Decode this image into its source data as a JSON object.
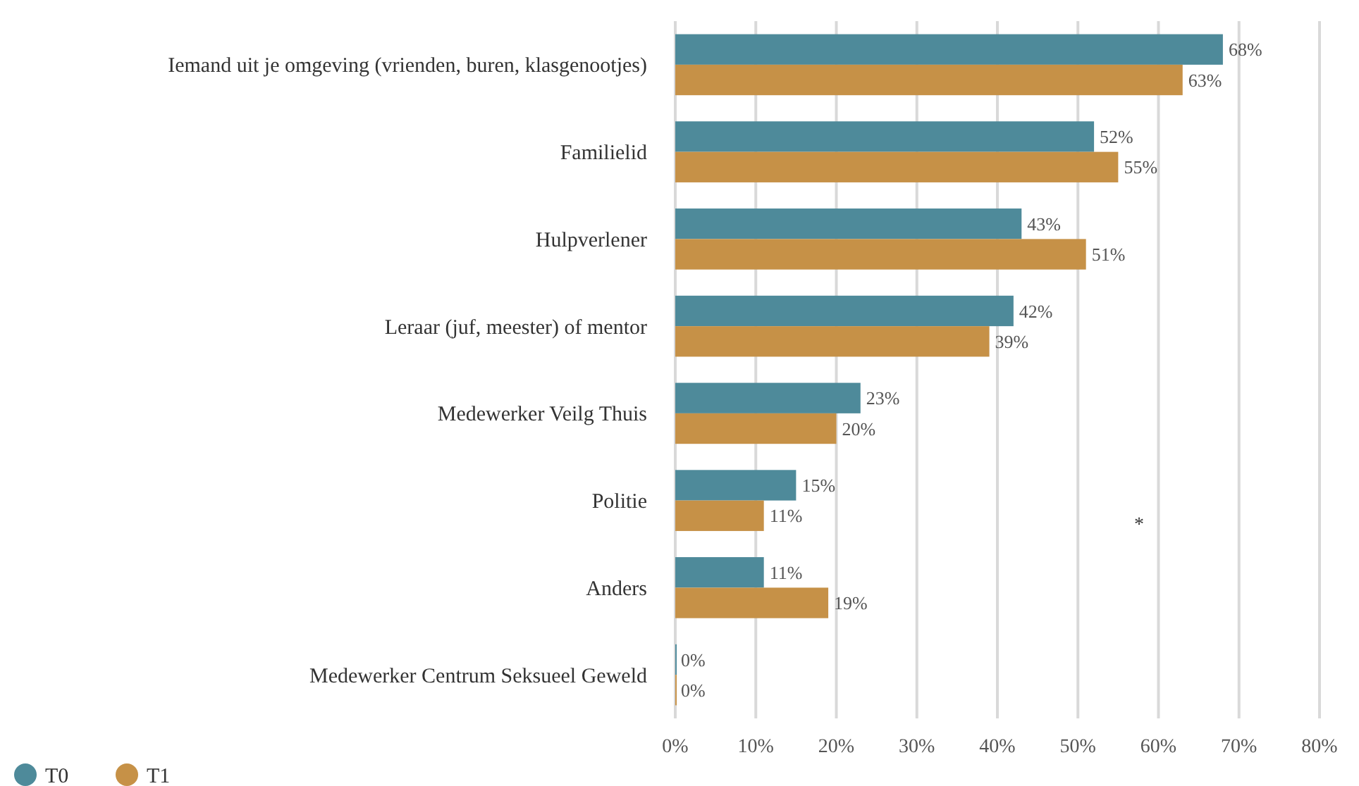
{
  "chart_data": {
    "type": "bar",
    "orientation": "horizontal",
    "categories": [
      "Iemand uit je omgeving (vrienden, buren, klasgenootjes)",
      "Familielid",
      "Hulpverlener",
      "Leraar (juf, meester) of mentor",
      "Medewerker Veilg Thuis",
      "Politie",
      "Anders",
      "Medewerker Centrum Seksueel Geweld"
    ],
    "series": [
      {
        "name": "T0",
        "color": "#4e8a9a",
        "values": [
          68,
          52,
          43,
          42,
          23,
          15,
          11,
          0
        ],
        "value_labels": [
          "68%",
          "52%",
          "43%",
          "42%",
          "23%",
          "15%",
          "11%",
          "0%"
        ]
      },
      {
        "name": "T1",
        "color": "#c69147",
        "values": [
          63,
          55,
          51,
          39,
          20,
          11,
          19,
          0
        ],
        "value_labels": [
          "63%",
          "55%",
          "51%",
          "39%",
          "20%",
          "11%",
          "19%",
          "0%"
        ]
      }
    ],
    "xlim": [
      0,
      80
    ],
    "xticks": [
      {
        "value": 0,
        "label": "0%"
      },
      {
        "value": 10,
        "label": "10%"
      },
      {
        "value": 20,
        "label": "20%"
      },
      {
        "value": 30,
        "label": "30%"
      },
      {
        "value": 40,
        "label": "40%"
      },
      {
        "value": 50,
        "label": "50%"
      },
      {
        "value": 60,
        "label": "60%"
      },
      {
        "value": 70,
        "label": "70%"
      },
      {
        "value": 80,
        "label": "80%"
      }
    ],
    "grid": "x",
    "legend": "bottom left",
    "annotations": [
      "*"
    ]
  }
}
